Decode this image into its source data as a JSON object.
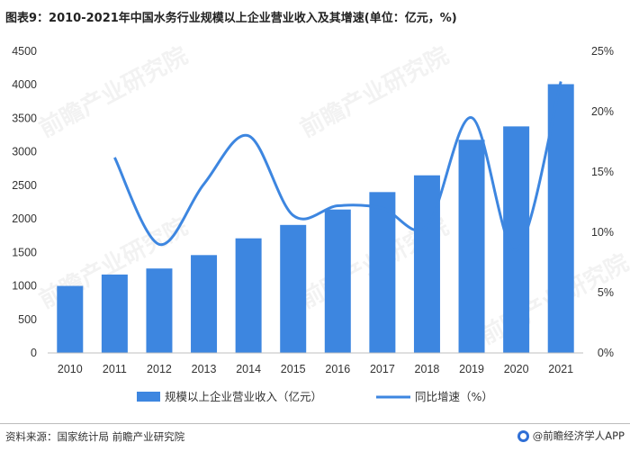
{
  "title": "图表9：2010-2021年中国水务行业规模以上企业营业收入及其增速(单位：亿元，%)",
  "source": "资料来源：国家统计局 前瞻产业研究院",
  "brand": "@前瞻经济学人APP",
  "watermark": "前瞻产业研究院",
  "colors": {
    "bar": "#3d86e0",
    "line": "#3d86e0",
    "axis": "#bfbfbf"
  },
  "chart_data": {
    "type": "bar+line",
    "categories": [
      "2010",
      "2011",
      "2012",
      "2013",
      "2014",
      "2015",
      "2016",
      "2017",
      "2018",
      "2019",
      "2020",
      "2021"
    ],
    "series": [
      {
        "name": "规模以上企业营业收入（亿元）",
        "type": "bar",
        "axis": "left",
        "values": [
          1000,
          1170,
          1260,
          1460,
          1710,
          1910,
          2140,
          2400,
          2650,
          3180,
          3380,
          4010
        ]
      },
      {
        "name": "同比增速（%）",
        "type": "line",
        "axis": "right",
        "values": [
          null,
          16.2,
          9.0,
          14.0,
          18.0,
          11.4,
          12.2,
          12.0,
          10.5,
          19.5,
          8.5,
          22.5
        ]
      }
    ],
    "ylim_left": [
      0,
      4500
    ],
    "yticks_left": [
      "0",
      "500",
      "1000",
      "1500",
      "2000",
      "2500",
      "3000",
      "3500",
      "4000",
      "4500"
    ],
    "ylim_right": [
      0,
      25
    ],
    "yticks_right": [
      "0%",
      "5%",
      "10%",
      "15%",
      "20%",
      "25%"
    ],
    "legend_position": "bottom",
    "grid": false
  }
}
